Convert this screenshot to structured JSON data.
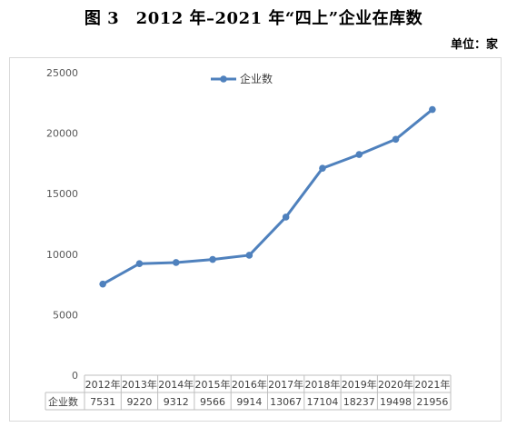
{
  "title": "图 3　2012 年–2021 年“四上”企业在库数",
  "unit_label": "单位：家",
  "chart_data": {
    "type": "line",
    "categories": [
      "2012年",
      "2013年",
      "2014年",
      "2015年",
      "2016年",
      "2017年",
      "2018年",
      "2019年",
      "2020年",
      "2021年"
    ],
    "series": [
      {
        "name": "企业数",
        "values": [
          7531,
          9220,
          9312,
          9566,
          9914,
          13067,
          17104,
          18237,
          19498,
          21956
        ]
      }
    ],
    "ylim": [
      0,
      25000
    ],
    "yticks": [
      "0",
      "5000",
      "10000",
      "15000",
      "20000",
      "25000"
    ],
    "grid": false,
    "legend": "top-center",
    "data_table": true,
    "colors": {
      "series": "#4f81bd"
    }
  }
}
